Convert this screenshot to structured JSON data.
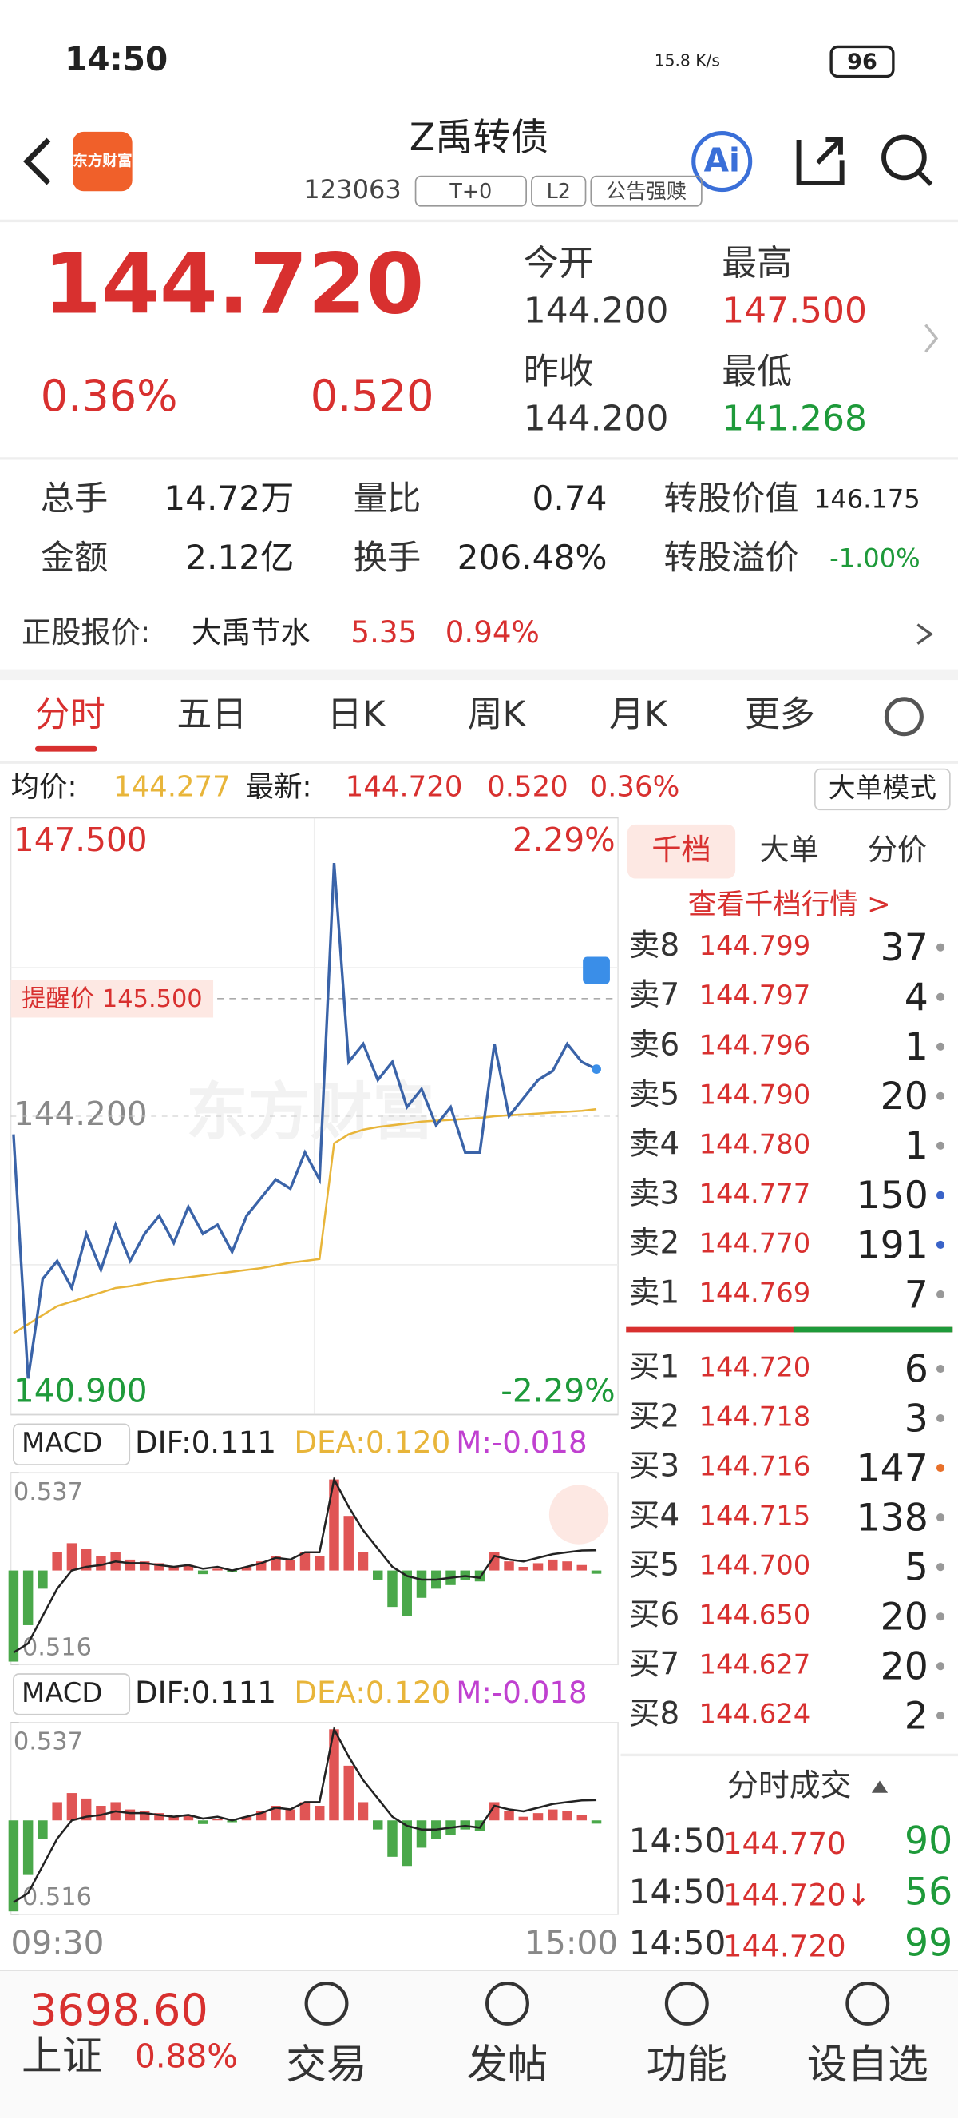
{
  "status": {
    "time": "14:50",
    "net": "15.8 K/s",
    "battery": "96"
  },
  "header": {
    "logo": "东方财富",
    "title": "Z禹转债",
    "code": "123063",
    "tags": [
      "T+0",
      "L2",
      "公告强赎"
    ],
    "ai": "Ai"
  },
  "quote": {
    "price": "144.720",
    "pct": "0.36%",
    "change": "0.520",
    "fields": [
      {
        "label": "今开",
        "value": "144.200"
      },
      {
        "label": "最高",
        "value": "147.500"
      },
      {
        "label": "昨收",
        "value": "144.200"
      },
      {
        "label": "最低",
        "value": "141.268"
      }
    ]
  },
  "stats": [
    {
      "label": "总手",
      "value": "14.72万"
    },
    {
      "label": "量比",
      "value": "0.74"
    },
    {
      "label": "转股价值",
      "value": "146.175"
    },
    {
      "label": "金额",
      "value": "2.12亿"
    },
    {
      "label": "换手",
      "value": "206.48%"
    },
    {
      "label": "转股溢价",
      "value": "-1.00%"
    }
  ],
  "stock": {
    "label": "正股报价:",
    "name": "大禹节水",
    "price": "5.35",
    "pct": "0.94%"
  },
  "tabs": [
    "分时",
    "五日",
    "日K",
    "周K",
    "月K",
    "更多"
  ],
  "infobar": {
    "avg_label": "均价:",
    "avg": "144.277",
    "latest_label": "最新:",
    "latest": "144.720",
    "change": "0.520",
    "pct": "0.36%",
    "mode": "大单模式"
  },
  "intraday": {
    "type": "line",
    "ylim": [
      140.9,
      147.5
    ],
    "yticks": [
      {
        "value": 140.9,
        "label": "140.900"
      },
      {
        "value": 144.2,
        "label": "144.200"
      },
      {
        "value": 147.5,
        "label": "147.500"
      }
    ],
    "pct_top": "2.29%",
    "pct_bottom": "-2.29%",
    "alert": {
      "label": "提醒价 145.500",
      "value": 145.5
    },
    "watermark": "东方财富",
    "xlabels": [
      "09:30",
      "15:00"
    ],
    "price": {
      "color": "#3a63a8",
      "values": [
        144.0,
        141.3,
        142.4,
        142.6,
        142.3,
        142.9,
        142.5,
        143.0,
        142.6,
        142.9,
        143.1,
        142.8,
        143.2,
        142.9,
        143.0,
        142.7,
        143.1,
        143.3,
        143.5,
        143.4,
        143.8,
        143.5,
        147.0,
        144.8,
        145.0,
        144.6,
        144.8,
        144.3,
        144.5,
        144.1,
        144.3,
        143.8,
        143.8,
        145.0,
        144.2,
        144.4,
        144.6,
        144.7,
        145.0,
        144.8,
        144.72
      ]
    },
    "avg": {
      "color": "#e8b53a",
      "values": [
        141.8,
        141.9,
        142.0,
        142.1,
        142.15,
        142.2,
        142.25,
        142.3,
        142.32,
        142.35,
        142.38,
        142.4,
        142.42,
        142.44,
        142.46,
        142.48,
        142.5,
        142.52,
        142.55,
        142.58,
        142.6,
        142.62,
        143.9,
        144.0,
        144.05,
        144.08,
        144.1,
        144.12,
        144.14,
        144.15,
        144.16,
        144.17,
        144.18,
        144.2,
        144.21,
        144.22,
        144.23,
        144.24,
        144.25,
        144.26,
        144.277
      ]
    }
  },
  "macd": {
    "type": "bar",
    "name": "MACD",
    "dif": "DIF:0.111",
    "dea": "DEA:0.120",
    "m": "M:-0.018",
    "ylim": [
      -0.516,
      0.537
    ],
    "yticks": [
      -0.516,
      0.537
    ],
    "hist": [
      -0.5,
      -0.3,
      -0.1,
      0.1,
      0.15,
      0.12,
      0.08,
      0.1,
      0.06,
      0.05,
      0.04,
      0.02,
      0.03,
      -0.02,
      0.01,
      -0.01,
      0.02,
      0.05,
      0.08,
      0.06,
      0.1,
      0.08,
      0.5,
      0.3,
      0.1,
      -0.05,
      -0.2,
      -0.25,
      -0.15,
      -0.1,
      -0.08,
      -0.05,
      -0.06,
      0.1,
      0.05,
      0.02,
      0.04,
      0.06,
      0.05,
      0.03,
      -0.018
    ],
    "dif_values": [
      -0.45,
      -0.4,
      -0.25,
      -0.1,
      0,
      0.02,
      0.03,
      0.05,
      0.04,
      0.04,
      0.03,
      0.02,
      0.03,
      0.01,
      0.02,
      0.0,
      0.02,
      0.04,
      0.07,
      0.06,
      0.1,
      0.1,
      0.5,
      0.35,
      0.22,
      0.12,
      0.02,
      -0.03,
      -0.05,
      -0.05,
      -0.04,
      -0.03,
      -0.04,
      0.08,
      0.06,
      0.05,
      0.07,
      0.09,
      0.1,
      0.11,
      0.111
    ]
  },
  "book": {
    "tabs": [
      "千档",
      "大单",
      "分价"
    ],
    "link": "查看千档行情 >",
    "sell": [
      {
        "label": "卖8",
        "price": "144.799",
        "volume": 37,
        "dot": "#999"
      },
      {
        "label": "卖7",
        "price": "144.797",
        "volume": 4,
        "dot": "#999"
      },
      {
        "label": "卖6",
        "price": "144.796",
        "volume": 1,
        "dot": "#999"
      },
      {
        "label": "卖5",
        "price": "144.790",
        "volume": 20,
        "dot": "#999"
      },
      {
        "label": "卖4",
        "price": "144.780",
        "volume": 1,
        "dot": "#999"
      },
      {
        "label": "卖3",
        "price": "144.777",
        "volume": 150,
        "dot": "#3a63c8"
      },
      {
        "label": "卖2",
        "price": "144.770",
        "volume": 191,
        "dot": "#3a63c8"
      },
      {
        "label": "卖1",
        "price": "144.769",
        "volume": 7,
        "dot": "#999"
      }
    ],
    "buy": [
      {
        "label": "买1",
        "price": "144.720",
        "volume": 6,
        "dot": "#999"
      },
      {
        "label": "买2",
        "price": "144.718",
        "volume": 3,
        "dot": "#999"
      },
      {
        "label": "买3",
        "price": "144.716",
        "volume": 147,
        "dot": "#e8702a"
      },
      {
        "label": "买4",
        "price": "144.715",
        "volume": 138,
        "dot": "#999"
      },
      {
        "label": "买5",
        "price": "144.700",
        "volume": 5,
        "dot": "#999"
      },
      {
        "label": "买6",
        "price": "144.650",
        "volume": 20,
        "dot": "#999"
      },
      {
        "label": "买7",
        "price": "144.627",
        "volume": 20,
        "dot": "#999"
      },
      {
        "label": "买8",
        "price": "144.624",
        "volume": 2,
        "dot": "#999"
      }
    ]
  },
  "trades": {
    "title": "分时成交",
    "rows": [
      {
        "time": "14:50",
        "price": "144.770",
        "volume": 90
      },
      {
        "time": "14:50",
        "price": "144.720↓",
        "volume": 56
      },
      {
        "time": "14:50",
        "price": "144.720",
        "volume": 99
      }
    ]
  },
  "nav": {
    "index": "3698.60",
    "name": "上证",
    "pct": "0.88%",
    "items": [
      "交易",
      "发帖",
      "功能",
      "设自选"
    ]
  }
}
